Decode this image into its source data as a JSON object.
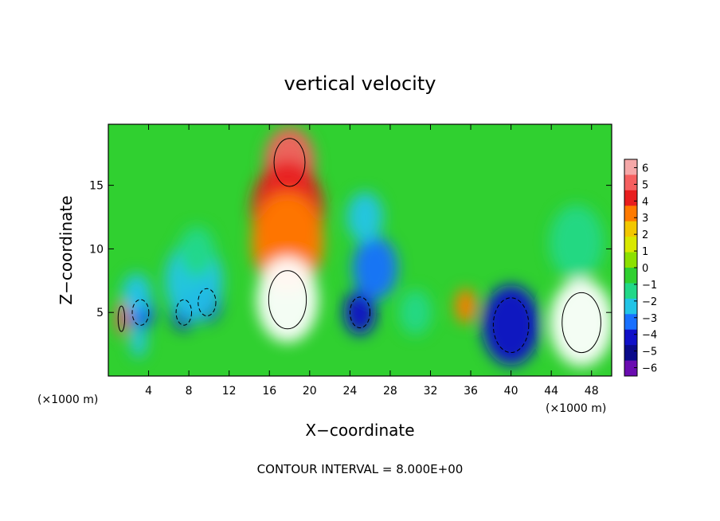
{
  "chart_data": {
    "type": "heatmap",
    "title": "vertical velocity",
    "xlabel": "X−coordinate",
    "ylabel": "Z−coordinate",
    "x_unit_left": "(×1000 m)",
    "x_unit_right": "(×1000 m)",
    "footer": "CONTOUR INTERVAL = 8.000E+00",
    "xlim": [
      0,
      50
    ],
    "ylim": [
      0,
      19.8
    ],
    "x_ticks": [
      4,
      8,
      12,
      16,
      20,
      24,
      28,
      32,
      36,
      40,
      44,
      48
    ],
    "y_ticks": [
      5,
      10,
      15
    ],
    "colorbar": {
      "ticks": [
        "6",
        "5",
        "4",
        "3",
        "2",
        "1",
        "0",
        "−1",
        "−2",
        "−3",
        "−4",
        "−5",
        "−6"
      ],
      "colors": [
        "#f5a8a8",
        "#f56060",
        "#e81e1e",
        "#ff7a00",
        "#f2c700",
        "#d9e800",
        "#8ce000",
        "#30d030",
        "#22d888",
        "#22c4e6",
        "#1870ff",
        "#1010c8",
        "#0a0a8a",
        "#6a0cb0"
      ]
    },
    "features": [
      {
        "x": 1.3,
        "z": 4.5,
        "w": 0.6,
        "value": 5
      },
      {
        "x": 3.2,
        "z": 5.0,
        "w": 1.5,
        "value": -5
      },
      {
        "x": 3.2,
        "z": 5.5,
        "w": 1.3,
        "value": -4
      },
      {
        "x": 3.0,
        "z": 2.8,
        "w": 0.9,
        "value": -3
      },
      {
        "x": 2.8,
        "z": 6.5,
        "w": 1.6,
        "value": -3
      },
      {
        "x": 7.5,
        "z": 5.0,
        "w": 1.4,
        "value": -5
      },
      {
        "x": 9.8,
        "z": 5.8,
        "w": 1.6,
        "value": -5
      },
      {
        "x": 8.5,
        "z": 7.5,
        "w": 3.2,
        "value": -3
      },
      {
        "x": 8.8,
        "z": 9.8,
        "w": 2.0,
        "value": -2
      },
      {
        "x": 18.0,
        "z": 16.8,
        "w": 2.8,
        "value": 5
      },
      {
        "x": 17.8,
        "z": 13.0,
        "w": 4.0,
        "value": 4
      },
      {
        "x": 17.8,
        "z": 10.5,
        "w": 4.0,
        "value": 3
      },
      {
        "x": 17.8,
        "z": 6.0,
        "w": 3.4,
        "value": 6
      },
      {
        "x": 25.0,
        "z": 5.0,
        "w": 1.8,
        "value": -5
      },
      {
        "x": 26.5,
        "z": 8.5,
        "w": 2.5,
        "value": -4
      },
      {
        "x": 25.5,
        "z": 12.5,
        "w": 2.0,
        "value": -3
      },
      {
        "x": 30.5,
        "z": 5.0,
        "w": 1.8,
        "value": -2
      },
      {
        "x": 35.5,
        "z": 5.5,
        "w": 1.2,
        "value": 3
      },
      {
        "x": 40.0,
        "z": 4.0,
        "w": 3.2,
        "value": -5
      },
      {
        "x": 46.5,
        "z": 10.5,
        "w": 3.0,
        "value": -2
      },
      {
        "x": 47.0,
        "z": 4.2,
        "w": 3.5,
        "value": 6
      }
    ]
  }
}
